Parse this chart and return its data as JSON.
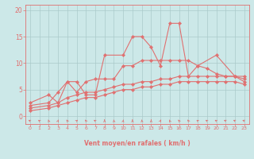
{
  "xlabel": "Vent moyen/en rafales ( km/h )",
  "background_color": "#cce8e8",
  "line_color": "#e07070",
  "grid_color": "#aacaca",
  "xlim": [
    -0.5,
    23.5
  ],
  "ylim": [
    -1.5,
    21
  ],
  "yticks": [
    0,
    5,
    10,
    15,
    20
  ],
  "xticks": [
    0,
    1,
    2,
    3,
    4,
    5,
    6,
    7,
    8,
    9,
    10,
    11,
    12,
    13,
    14,
    15,
    16,
    17,
    18,
    19,
    20,
    21,
    22,
    23
  ],
  "x": [
    0,
    2,
    3,
    4,
    5,
    6,
    7,
    8,
    9,
    10,
    11,
    12,
    13,
    14,
    15,
    16,
    17,
    18,
    20,
    22,
    23
  ],
  "series1_x": [
    0,
    2,
    3,
    4,
    5,
    6,
    7,
    8,
    10,
    11,
    12,
    13,
    14,
    15,
    16,
    17,
    18,
    20,
    22,
    23
  ],
  "series1_y": [
    2.5,
    4.0,
    2.5,
    6.5,
    6.5,
    4.0,
    4.0,
    11.5,
    11.5,
    15.0,
    15.0,
    13.0,
    9.5,
    17.5,
    17.5,
    7.5,
    9.5,
    11.5,
    7.5,
    7.5
  ],
  "series2_x": [
    0,
    2,
    3,
    4,
    5,
    6,
    7,
    8,
    9,
    10,
    11,
    12,
    13,
    14,
    15,
    16,
    17,
    18,
    19,
    20,
    21,
    22,
    23
  ],
  "series2_y": [
    2.0,
    2.5,
    4.5,
    6.5,
    4.5,
    6.5,
    7.0,
    7.0,
    7.0,
    9.5,
    9.5,
    10.5,
    10.5,
    10.5,
    10.5,
    10.5,
    10.5,
    9.5,
    9.0,
    8.0,
    7.5,
    7.5,
    6.5
  ],
  "series3_x": [
    0,
    2,
    3,
    4,
    5,
    6,
    7,
    8,
    9,
    10,
    11,
    12,
    13,
    14,
    15,
    16,
    17,
    18,
    19,
    20,
    21,
    22,
    23
  ],
  "series3_y": [
    1.5,
    2.0,
    2.5,
    3.5,
    4.0,
    4.5,
    4.5,
    5.0,
    5.5,
    6.0,
    6.0,
    6.5,
    6.5,
    7.0,
    7.0,
    7.5,
    7.5,
    7.5,
    7.5,
    7.5,
    7.5,
    7.5,
    7.0
  ],
  "series4_x": [
    0,
    2,
    3,
    4,
    5,
    6,
    7,
    8,
    9,
    10,
    11,
    12,
    13,
    14,
    15,
    16,
    17,
    18,
    19,
    20,
    21,
    22,
    23
  ],
  "series4_y": [
    1.0,
    1.5,
    2.0,
    2.5,
    3.0,
    3.5,
    3.5,
    4.0,
    4.5,
    5.0,
    5.0,
    5.5,
    5.5,
    6.0,
    6.0,
    6.5,
    6.5,
    6.5,
    6.5,
    6.5,
    6.5,
    6.5,
    6.0
  ],
  "wind_angles_deg": [
    225,
    210,
    190,
    170,
    200,
    150,
    200,
    220,
    180,
    185,
    175,
    180,
    185,
    180,
    165,
    190,
    200,
    200,
    210,
    220,
    220,
    225,
    225,
    230
  ]
}
